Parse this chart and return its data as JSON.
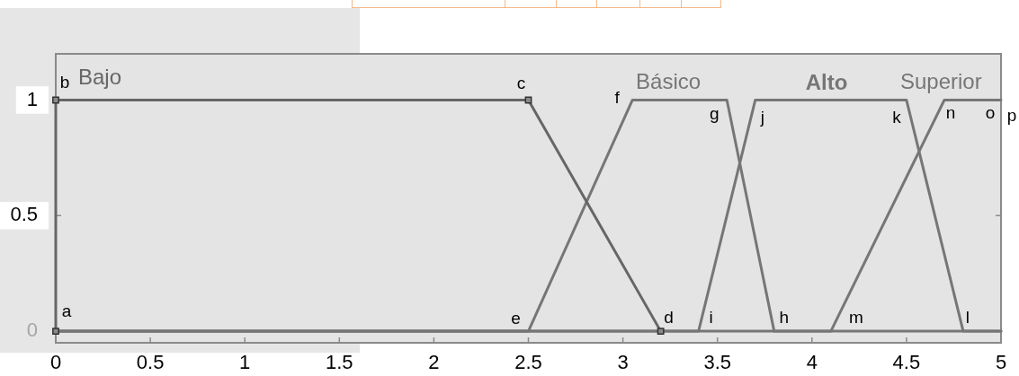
{
  "chart_data": {
    "type": "line",
    "xlim": [
      0,
      5
    ],
    "xticks": [
      0,
      0.5,
      1,
      1.5,
      2,
      2.5,
      3,
      3.5,
      4,
      4.5,
      5
    ],
    "ylim": [
      -0.05,
      1.2
    ],
    "yticks": [
      0,
      0.5,
      1
    ],
    "line_style": "solid",
    "marker": "none",
    "series": [
      {
        "name": "Bajo",
        "color": "#666666",
        "x": [
          0,
          0,
          2.5,
          3.2
        ],
        "values": [
          0,
          1,
          1,
          0
        ],
        "marker": "square"
      },
      {
        "name": "Básico",
        "color": "#767676",
        "x": [
          0,
          2.5,
          3.05,
          3.55,
          3.8,
          5
        ],
        "values": [
          0,
          0,
          1,
          1,
          0,
          0
        ]
      },
      {
        "name": "Alto",
        "color": "#767676",
        "x": [
          0,
          3.4,
          3.7,
          4.5,
          4.8,
          5
        ],
        "values": [
          0,
          0,
          1,
          1,
          0,
          0
        ]
      },
      {
        "name": "Superior",
        "color": "#767676",
        "x": [
          0,
          4.1,
          4.7,
          5
        ],
        "values": [
          0,
          0,
          1,
          1
        ]
      }
    ],
    "annotations": [
      {
        "text": "a",
        "x": 0,
        "y": 0
      },
      {
        "text": "b",
        "x": 0,
        "y": 1
      },
      {
        "text": "c",
        "x": 2.5,
        "y": 1
      },
      {
        "text": "d",
        "x": 3.2,
        "y": 0
      },
      {
        "text": "e",
        "x": 2.5,
        "y": 0
      },
      {
        "text": "f",
        "x": 3.05,
        "y": 1
      },
      {
        "text": "g",
        "x": 3.55,
        "y": 1
      },
      {
        "text": "h",
        "x": 3.8,
        "y": 0
      },
      {
        "text": "i",
        "x": 3.4,
        "y": 0
      },
      {
        "text": "j",
        "x": 3.7,
        "y": 1
      },
      {
        "text": "k",
        "x": 4.5,
        "y": 1
      },
      {
        "text": "l",
        "x": 4.8,
        "y": 0
      },
      {
        "text": "m",
        "x": 4.1,
        "y": 0
      },
      {
        "text": "n",
        "x": 4.7,
        "y": 1
      },
      {
        "text": "o",
        "x": 5,
        "y": 1
      },
      {
        "text": "p",
        "x": 5,
        "y": 1
      }
    ]
  }
}
